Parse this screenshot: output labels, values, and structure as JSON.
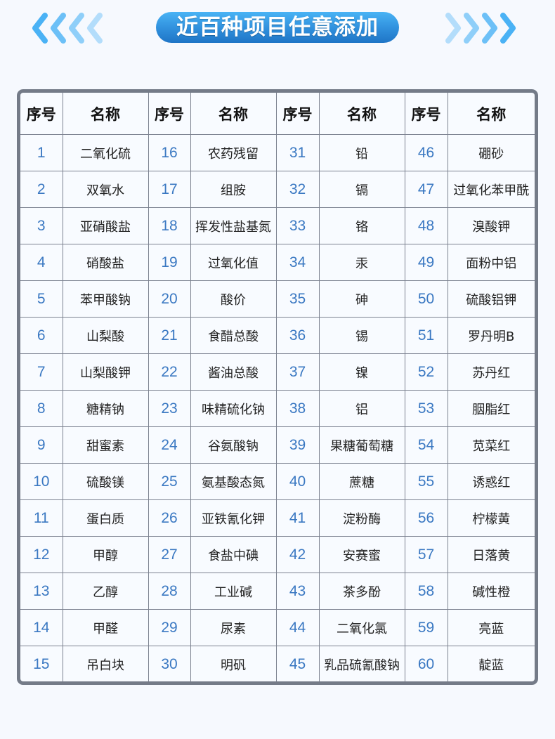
{
  "header": {
    "title": "近百种项目任意添加",
    "colors": {
      "accent": "#2f8fdc",
      "chevron_dark": "#4ab2f5",
      "chevron_light": "#b3ddfb",
      "number": "#3a78c2",
      "border": "#747b88"
    }
  },
  "table": {
    "headers": [
      "序号",
      "名称",
      "序号",
      "名称",
      "序号",
      "名称",
      "序号",
      "名称"
    ],
    "rows": [
      [
        [
          "1",
          "二氧化硫"
        ],
        [
          "16",
          "农药残留"
        ],
        [
          "31",
          "铅"
        ],
        [
          "46",
          "硼砂"
        ]
      ],
      [
        [
          "2",
          "双氧水"
        ],
        [
          "17",
          "组胺"
        ],
        [
          "32",
          "镉"
        ],
        [
          "47",
          "过氧化苯甲酰"
        ]
      ],
      [
        [
          "3",
          "亚硝酸盐"
        ],
        [
          "18",
          "挥发性盐基氮"
        ],
        [
          "33",
          "铬"
        ],
        [
          "48",
          "溴酸钾"
        ]
      ],
      [
        [
          "4",
          "硝酸盐"
        ],
        [
          "19",
          "过氧化值"
        ],
        [
          "34",
          "汞"
        ],
        [
          "49",
          "面粉中铝"
        ]
      ],
      [
        [
          "5",
          "苯甲酸钠"
        ],
        [
          "20",
          "酸价"
        ],
        [
          "35",
          "砷"
        ],
        [
          "50",
          "硫酸铝钾"
        ]
      ],
      [
        [
          "6",
          "山梨酸"
        ],
        [
          "21",
          "食醋总酸"
        ],
        [
          "36",
          "锡"
        ],
        [
          "51",
          "罗丹明B"
        ]
      ],
      [
        [
          "7",
          "山梨酸钾"
        ],
        [
          "22",
          "酱油总酸"
        ],
        [
          "37",
          "镍"
        ],
        [
          "52",
          "苏丹红"
        ]
      ],
      [
        [
          "8",
          "糖精钠"
        ],
        [
          "23",
          "味精硫化钠"
        ],
        [
          "38",
          "铝"
        ],
        [
          "53",
          "胭脂红"
        ]
      ],
      [
        [
          "9",
          "甜蜜素"
        ],
        [
          "24",
          "谷氨酸钠"
        ],
        [
          "39",
          "果糖葡萄糖"
        ],
        [
          "54",
          "苋菜红"
        ]
      ],
      [
        [
          "10",
          "硫酸镁"
        ],
        [
          "25",
          "氨基酸态氮"
        ],
        [
          "40",
          "蔗糖"
        ],
        [
          "55",
          "诱惑红"
        ]
      ],
      [
        [
          "11",
          "蛋白质"
        ],
        [
          "26",
          "亚铁氰化钾"
        ],
        [
          "41",
          "淀粉酶"
        ],
        [
          "56",
          "柠檬黄"
        ]
      ],
      [
        [
          "12",
          "甲醇"
        ],
        [
          "27",
          "食盐中碘"
        ],
        [
          "42",
          "安赛蜜"
        ],
        [
          "57",
          "日落黄"
        ]
      ],
      [
        [
          "13",
          "乙醇"
        ],
        [
          "28",
          "工业碱"
        ],
        [
          "43",
          "茶多酚"
        ],
        [
          "58",
          "碱性橙"
        ]
      ],
      [
        [
          "14",
          "甲醛"
        ],
        [
          "29",
          "尿素"
        ],
        [
          "44",
          "二氧化氯"
        ],
        [
          "59",
          "亮蓝"
        ]
      ],
      [
        [
          "15",
          "吊白块"
        ],
        [
          "30",
          "明矾"
        ],
        [
          "45",
          "乳品硫氰酸钠"
        ],
        [
          "60",
          "靛蓝"
        ]
      ]
    ]
  }
}
